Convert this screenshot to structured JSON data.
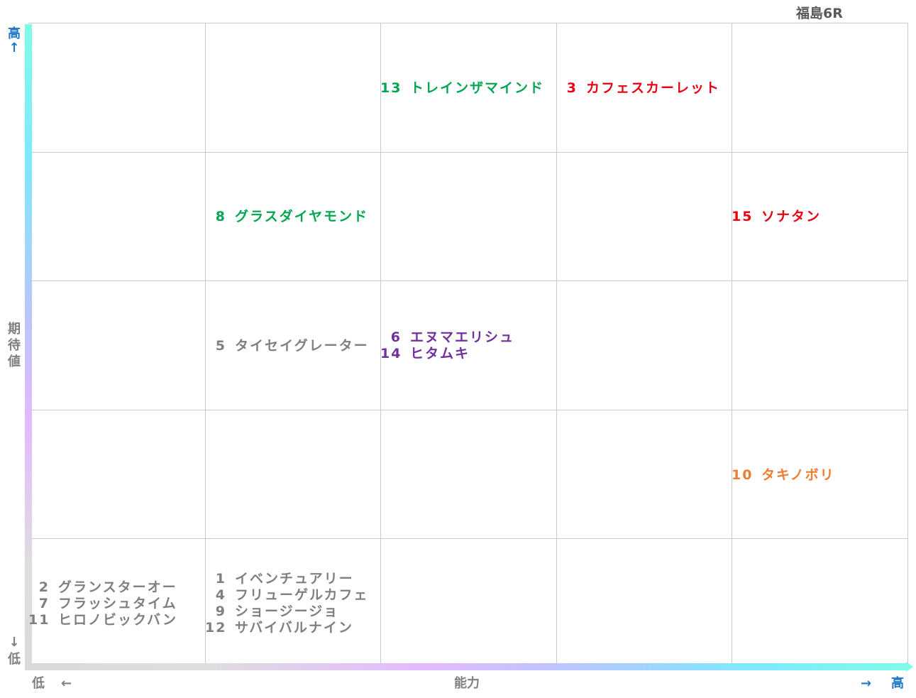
{
  "title": "福島6R",
  "axes": {
    "y_high": "高",
    "y_high_arrow": "↑",
    "y_label": "期\n待\n値",
    "y_low_arrow": "↓",
    "y_low": "低",
    "x_low": "低",
    "x_low_arrow": "←",
    "x_label": "能力",
    "x_high_arrow": "→",
    "x_high": "高"
  },
  "colors": {
    "green": "#00a650",
    "red": "#e60012",
    "purple": "#7030a0",
    "gray": "#7f7f7f",
    "orange": "#ed7d31"
  },
  "cells": {
    "r0c2": [
      {
        "num": "13",
        "name": "トレインザマインド",
        "color": "#00a650"
      }
    ],
    "r0c3": [
      {
        "num": "3",
        "name": "カフェスカーレット",
        "color": "#e60012"
      }
    ],
    "r1c1": [
      {
        "num": "8",
        "name": "グラスダイヤモンド",
        "color": "#00a650"
      }
    ],
    "r1c4": [
      {
        "num": "15",
        "name": "ソナタン",
        "color": "#e60012"
      }
    ],
    "r2c1": [
      {
        "num": "5",
        "name": "タイセイグレーター",
        "color": "#7f7f7f"
      }
    ],
    "r2c2": [
      {
        "num": "6",
        "name": "エヌマエリシュ",
        "color": "#7030a0"
      },
      {
        "num": "14",
        "name": "ヒタムキ",
        "color": "#7030a0"
      }
    ],
    "r3c4": [
      {
        "num": "10",
        "name": "タキノボリ",
        "color": "#ed7d31"
      }
    ],
    "r4c0": [
      {
        "num": "2",
        "name": "グランスターオー",
        "color": "#7f7f7f"
      },
      {
        "num": "7",
        "name": "フラッシュタイム",
        "color": "#7f7f7f"
      },
      {
        "num": "11",
        "name": "ヒロノビックバン",
        "color": "#7f7f7f"
      }
    ],
    "r4c1": [
      {
        "num": "1",
        "name": "イベンチュアリー",
        "color": "#7f7f7f"
      },
      {
        "num": "4",
        "name": "フリューゲルカフェ",
        "color": "#7f7f7f"
      },
      {
        "num": "9",
        "name": "ショージージョ",
        "color": "#7f7f7f"
      },
      {
        "num": "12",
        "name": "サバイバルナイン",
        "color": "#7f7f7f"
      }
    ]
  }
}
